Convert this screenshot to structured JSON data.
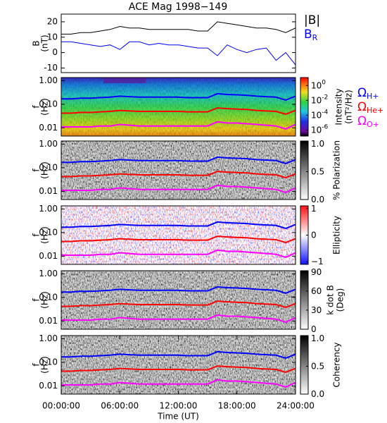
{
  "chart_data": [
    {
      "type": "line",
      "title": "ACE Mag 1998−149",
      "ylabel": [
        "B",
        "(nT)"
      ],
      "xlim": [
        0,
        24
      ],
      "ylim": [
        -13,
        25
      ],
      "yticks": [
        -10,
        0,
        10,
        20
      ],
      "x": [
        0,
        1,
        2,
        3,
        4,
        5,
        6,
        7,
        8,
        9,
        10,
        11,
        12,
        13,
        14,
        15,
        16,
        17,
        18,
        19,
        20,
        21,
        22,
        23,
        24
      ],
      "series": [
        {
          "name": "|B|",
          "color": "#000000",
          "values": [
            12,
            12,
            13,
            13,
            14,
            15,
            17,
            16,
            16,
            15,
            15,
            15,
            15,
            15,
            14,
            14,
            20,
            19,
            18,
            17,
            16,
            16,
            15,
            13,
            16
          ]
        },
        {
          "name": "B",
          "subscript": "R",
          "color": "#0000ff",
          "values": [
            7,
            7,
            6,
            5,
            4,
            5,
            2,
            7,
            7,
            5,
            6,
            5,
            5,
            4,
            3,
            3,
            -2,
            5,
            2,
            0,
            2,
            3,
            -5,
            0,
            -8
          ]
        }
      ]
    },
    {
      "type": "spectrogram",
      "ylabel": [
        "f",
        "(Hz)"
      ],
      "colormap": "rainbow",
      "clog": true,
      "xlim": [
        0,
        24
      ],
      "ylim": [
        0.0045,
        1.35
      ],
      "ylog": true,
      "yticks": [
        {
          "value": 1,
          "label": "1.00"
        },
        {
          "value": 0.1,
          "label": "0.10"
        },
        {
          "value": 0.01,
          "label": "0.01"
        }
      ],
      "clim": [
        1.5e-07,
        12
      ],
      "clabel": [
        "Intensity",
        "(nT²/Hz)"
      ],
      "cticks": [
        {
          "value": 1,
          "label": "10",
          "exponent": "0"
        },
        {
          "value": 0.01,
          "label": "10",
          "exponent": "-2"
        },
        {
          "value": 0.0001,
          "label": "10",
          "exponent": "-4"
        },
        {
          "value": 1e-06,
          "label": "10",
          "exponent": "-6"
        }
      ],
      "x": [
        0,
        1,
        2,
        3,
        4,
        5,
        6,
        7,
        8,
        9,
        10,
        11,
        12,
        13,
        14,
        15,
        16,
        17,
        18,
        19,
        20,
        21,
        22,
        23,
        24
      ],
      "series": [
        {
          "name": "Ω",
          "subscript": "H+",
          "color": "#0000ff",
          "values": [
            0.17,
            0.17,
            0.18,
            0.18,
            0.19,
            0.2,
            0.22,
            0.21,
            0.2,
            0.2,
            0.2,
            0.2,
            0.2,
            0.19,
            0.19,
            0.19,
            0.28,
            0.26,
            0.25,
            0.24,
            0.22,
            0.21,
            0.2,
            0.15,
            0.22
          ]
        },
        {
          "name": "Ω",
          "subscript": "He+",
          "color": "#ff0000",
          "values": [
            0.042,
            0.042,
            0.045,
            0.045,
            0.048,
            0.05,
            0.055,
            0.052,
            0.05,
            0.05,
            0.05,
            0.05,
            0.05,
            0.048,
            0.048,
            0.048,
            0.07,
            0.065,
            0.062,
            0.06,
            0.055,
            0.052,
            0.05,
            0.038,
            0.055
          ]
        },
        {
          "name": "Ω",
          "subscript": "O+",
          "color": "#ff00ff",
          "values": [
            0.011,
            0.011,
            0.011,
            0.011,
            0.012,
            0.012,
            0.014,
            0.013,
            0.012,
            0.012,
            0.012,
            0.012,
            0.012,
            0.012,
            0.012,
            0.012,
            0.018,
            0.016,
            0.016,
            0.015,
            0.014,
            0.013,
            0.012,
            0.009,
            0.014
          ]
        }
      ]
    },
    {
      "type": "spectrogram",
      "ylabel": [
        "f",
        "(Hz)"
      ],
      "colormap": "gray",
      "xlim": [
        0,
        24
      ],
      "ylim": [
        0.0045,
        1.35
      ],
      "ylog": true,
      "yticks": [
        {
          "value": 1,
          "label": "1.00"
        },
        {
          "value": 0.1,
          "label": "0.10"
        },
        {
          "value": 0.01,
          "label": "0.01"
        }
      ],
      "clim": [
        0,
        1.05
      ],
      "clabel": [
        "% Polarization"
      ],
      "cticks": [
        {
          "value": 1,
          "label": "1.0"
        },
        {
          "value": 0.5,
          "label": "0.5"
        },
        {
          "value": 0,
          "label": "0.0"
        }
      ],
      "x": [
        0,
        1,
        2,
        3,
        4,
        5,
        6,
        7,
        8,
        9,
        10,
        11,
        12,
        13,
        14,
        15,
        16,
        17,
        18,
        19,
        20,
        21,
        22,
        23,
        24
      ],
      "series": [
        {
          "color": "#0000ff",
          "values": [
            0.17,
            0.17,
            0.18,
            0.18,
            0.19,
            0.2,
            0.22,
            0.21,
            0.2,
            0.2,
            0.2,
            0.2,
            0.2,
            0.19,
            0.19,
            0.19,
            0.28,
            0.26,
            0.25,
            0.24,
            0.22,
            0.21,
            0.2,
            0.15,
            0.22
          ]
        },
        {
          "color": "#ff0000",
          "values": [
            0.042,
            0.042,
            0.045,
            0.045,
            0.048,
            0.05,
            0.055,
            0.052,
            0.05,
            0.05,
            0.05,
            0.05,
            0.05,
            0.048,
            0.048,
            0.048,
            0.07,
            0.065,
            0.062,
            0.06,
            0.055,
            0.052,
            0.05,
            0.038,
            0.055
          ]
        },
        {
          "color": "#ff00ff",
          "values": [
            0.011,
            0.011,
            0.011,
            0.011,
            0.012,
            0.012,
            0.014,
            0.013,
            0.012,
            0.012,
            0.012,
            0.012,
            0.012,
            0.012,
            0.012,
            0.012,
            0.018,
            0.016,
            0.016,
            0.015,
            0.014,
            0.013,
            0.012,
            0.009,
            0.014
          ]
        }
      ]
    },
    {
      "type": "spectrogram",
      "ylabel": [
        "f",
        "(Hz)"
      ],
      "colormap": "bwr",
      "xlim": [
        0,
        24
      ],
      "ylim": [
        0.0045,
        1.35
      ],
      "ylog": true,
      "yticks": [
        {
          "value": 1,
          "label": "1.00"
        },
        {
          "value": 0.1,
          "label": "0.10"
        },
        {
          "value": 0.01,
          "label": "0.01"
        }
      ],
      "clim": [
        -1.1,
        1.1
      ],
      "clabel": [
        "Ellipticity"
      ],
      "cticks": [
        1,
        0,
        {
          "value": -1,
          "label": "−1"
        }
      ],
      "x": [
        0,
        1,
        2,
        3,
        4,
        5,
        6,
        7,
        8,
        9,
        10,
        11,
        12,
        13,
        14,
        15,
        16,
        17,
        18,
        19,
        20,
        21,
        22,
        23,
        24
      ],
      "series": [
        {
          "color": "#0000ff",
          "values": [
            0.17,
            0.17,
            0.18,
            0.18,
            0.19,
            0.2,
            0.22,
            0.21,
            0.2,
            0.2,
            0.2,
            0.2,
            0.2,
            0.19,
            0.19,
            0.19,
            0.28,
            0.26,
            0.25,
            0.24,
            0.22,
            0.21,
            0.2,
            0.15,
            0.22
          ]
        },
        {
          "color": "#ff0000",
          "values": [
            0.042,
            0.042,
            0.045,
            0.045,
            0.048,
            0.05,
            0.055,
            0.052,
            0.05,
            0.05,
            0.05,
            0.05,
            0.05,
            0.048,
            0.048,
            0.048,
            0.07,
            0.065,
            0.062,
            0.06,
            0.055,
            0.052,
            0.05,
            0.038,
            0.055
          ]
        },
        {
          "color": "#ff00ff",
          "values": [
            0.011,
            0.011,
            0.011,
            0.011,
            0.012,
            0.012,
            0.014,
            0.013,
            0.012,
            0.012,
            0.012,
            0.012,
            0.012,
            0.012,
            0.012,
            0.012,
            0.018,
            0.016,
            0.016,
            0.015,
            0.014,
            0.013,
            0.012,
            0.009,
            0.014
          ]
        }
      ]
    },
    {
      "type": "spectrogram",
      "ylabel": [
        "f",
        "(Hz)"
      ],
      "colormap": "gray",
      "xlim": [
        0,
        24
      ],
      "ylim": [
        0.0045,
        1.35
      ],
      "ylog": true,
      "yticks": [
        {
          "value": 1,
          "label": "1.00"
        },
        {
          "value": 0.1,
          "label": "0.10"
        },
        {
          "value": 0.01,
          "label": "0.01"
        }
      ],
      "clim": [
        0,
        92
      ],
      "clabel": [
        "k dot B",
        "(Deg)"
      ],
      "cticks": [
        90,
        60,
        30,
        0
      ],
      "x": [
        0,
        1,
        2,
        3,
        4,
        5,
        6,
        7,
        8,
        9,
        10,
        11,
        12,
        13,
        14,
        15,
        16,
        17,
        18,
        19,
        20,
        21,
        22,
        23,
        24
      ],
      "series": [
        {
          "color": "#0000ff",
          "values": [
            0.17,
            0.17,
            0.18,
            0.18,
            0.19,
            0.2,
            0.22,
            0.21,
            0.2,
            0.2,
            0.2,
            0.2,
            0.2,
            0.19,
            0.19,
            0.19,
            0.28,
            0.26,
            0.25,
            0.24,
            0.22,
            0.21,
            0.2,
            0.15,
            0.22
          ]
        },
        {
          "color": "#ff0000",
          "values": [
            0.042,
            0.042,
            0.045,
            0.045,
            0.048,
            0.05,
            0.055,
            0.052,
            0.05,
            0.05,
            0.05,
            0.05,
            0.05,
            0.048,
            0.048,
            0.048,
            0.07,
            0.065,
            0.062,
            0.06,
            0.055,
            0.052,
            0.05,
            0.038,
            0.055
          ]
        },
        {
          "color": "#ff00ff",
          "values": [
            0.011,
            0.011,
            0.011,
            0.011,
            0.012,
            0.012,
            0.014,
            0.013,
            0.012,
            0.012,
            0.012,
            0.012,
            0.012,
            0.012,
            0.012,
            0.012,
            0.018,
            0.016,
            0.016,
            0.015,
            0.014,
            0.013,
            0.012,
            0.009,
            0.014
          ]
        }
      ]
    },
    {
      "type": "spectrogram",
      "ylabel": [
        "f",
        "(Hz)"
      ],
      "colormap": "gray",
      "xlim": [
        0,
        24
      ],
      "ylim": [
        0.0045,
        1.35
      ],
      "ylog": true,
      "yticks": [
        {
          "value": 1,
          "label": "1.00"
        },
        {
          "value": 0.1,
          "label": "0.10"
        },
        {
          "value": 0.01,
          "label": "0.01"
        }
      ],
      "clim": [
        0,
        1.05
      ],
      "clabel": [
        "Coherency"
      ],
      "cticks": [
        {
          "value": 1,
          "label": "1.0"
        },
        {
          "value": 0.5,
          "label": "0.5"
        },
        {
          "value": 0,
          "label": "0.0"
        }
      ],
      "xlabel": "Time (UT)",
      "xticks": [
        {
          "value": 0,
          "label": "00:00:00"
        },
        {
          "value": 6,
          "label": "06:00:00"
        },
        {
          "value": 12,
          "label": "12:00:00"
        },
        {
          "value": 18,
          "label": "18:00:00"
        },
        {
          "value": 24,
          "label": "24:00:00"
        }
      ],
      "x": [
        0,
        1,
        2,
        3,
        4,
        5,
        6,
        7,
        8,
        9,
        10,
        11,
        12,
        13,
        14,
        15,
        16,
        17,
        18,
        19,
        20,
        21,
        22,
        23,
        24
      ],
      "series": [
        {
          "color": "#0000ff",
          "values": [
            0.17,
            0.17,
            0.18,
            0.18,
            0.19,
            0.2,
            0.22,
            0.21,
            0.2,
            0.2,
            0.2,
            0.2,
            0.2,
            0.19,
            0.19,
            0.19,
            0.28,
            0.26,
            0.25,
            0.24,
            0.22,
            0.21,
            0.2,
            0.15,
            0.22
          ]
        },
        {
          "color": "#ff0000",
          "values": [
            0.042,
            0.042,
            0.045,
            0.045,
            0.048,
            0.05,
            0.055,
            0.052,
            0.05,
            0.05,
            0.05,
            0.05,
            0.05,
            0.048,
            0.048,
            0.048,
            0.07,
            0.065,
            0.062,
            0.06,
            0.055,
            0.052,
            0.05,
            0.038,
            0.055
          ]
        },
        {
          "color": "#ff00ff",
          "values": [
            0.011,
            0.011,
            0.011,
            0.011,
            0.012,
            0.012,
            0.014,
            0.013,
            0.012,
            0.012,
            0.012,
            0.012,
            0.012,
            0.012,
            0.012,
            0.012,
            0.018,
            0.016,
            0.016,
            0.015,
            0.014,
            0.013,
            0.012,
            0.009,
            0.014
          ]
        }
      ]
    }
  ]
}
